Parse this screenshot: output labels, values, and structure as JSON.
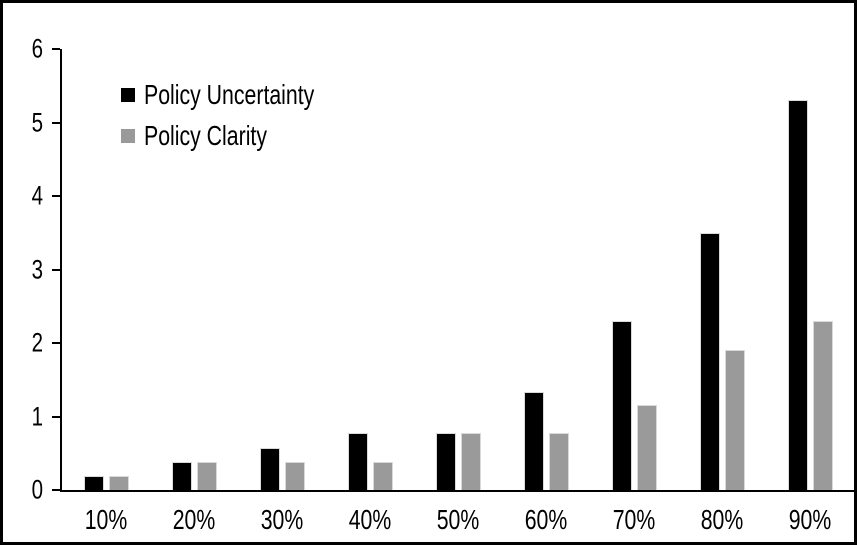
{
  "chart_data": {
    "type": "bar",
    "title": "",
    "xlabel": "",
    "ylabel": "",
    "categories": [
      "10%",
      "20%",
      "30%",
      "40%",
      "50%",
      "60%",
      "70%",
      "80%",
      "90%"
    ],
    "series": [
      {
        "name": "Policy Uncertainty",
        "color": "#000000",
        "values": [
          0.19,
          0.38,
          0.57,
          0.77,
          0.77,
          1.33,
          2.3,
          3.5,
          5.3
        ]
      },
      {
        "name": "Policy Clarity",
        "color": "#9a9a9a",
        "values": [
          0.19,
          0.38,
          0.38,
          0.38,
          0.77,
          0.77,
          1.15,
          1.9,
          2.3
        ]
      }
    ],
    "ylim": [
      0,
      6
    ],
    "yticks": [
      0,
      1,
      2,
      3,
      4,
      5,
      6
    ],
    "grid": false,
    "legend_position": "top-left-inside",
    "bar_border_color": "#d9d9d9",
    "axis_color": "#000000",
    "background_color": "#ffffff"
  }
}
